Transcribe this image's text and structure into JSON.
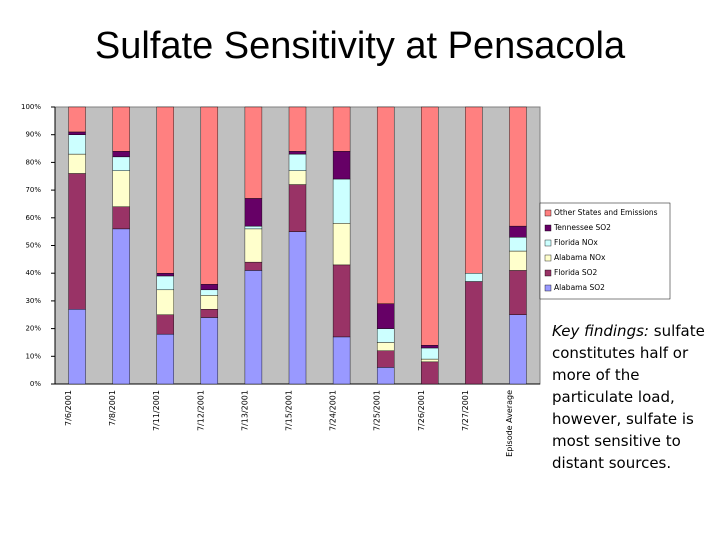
{
  "chart_data": {
    "type": "stacked-bar",
    "title": "Sulfate Sensitivity at Pensacola",
    "categories": [
      "7/6/2001",
      "7/8/2001",
      "7/11/2001",
      "7/12/2001",
      "7/13/2001",
      "7/15/2001",
      "7/24/2001",
      "7/25/2001",
      "7/26/2001",
      "7/27/2001",
      "Episode Average"
    ],
    "series": [
      {
        "name": "Alabama SO2",
        "color": "#9999ff",
        "values": [
          27,
          56,
          18,
          24,
          41,
          55,
          17,
          6,
          0,
          0,
          25
        ]
      },
      {
        "name": "Florida SO2",
        "color": "#993366",
        "values": [
          49,
          8,
          7,
          3,
          3,
          17,
          26,
          6,
          8,
          37,
          16
        ]
      },
      {
        "name": "Alabama NOx",
        "color": "#ffffcc",
        "values": [
          7,
          13,
          9,
          5,
          12,
          5,
          15,
          3,
          1,
          0,
          7
        ]
      },
      {
        "name": "Florida NOx",
        "color": "#ccffff",
        "values": [
          7,
          5,
          5,
          2,
          1,
          6,
          16,
          5,
          4,
          3,
          5
        ]
      },
      {
        "name": "Tennessee SO2",
        "color": "#660066",
        "values": [
          1,
          2,
          1,
          2,
          10,
          1,
          10,
          9,
          1,
          0,
          4
        ]
      },
      {
        "name": "Other States and Emissions",
        "color": "#ff8080",
        "values": [
          9,
          16,
          60,
          64,
          33,
          16,
          16,
          71,
          86,
          60,
          43
        ]
      }
    ],
    "ylim": [
      0,
      100
    ],
    "yticks": [
      {
        "value": 0,
        "label": "0%"
      },
      {
        "value": 10,
        "label": "10%"
      },
      {
        "value": 20,
        "label": "20%"
      },
      {
        "value": 30,
        "label": "30%"
      },
      {
        "value": 40,
        "label": "40%"
      },
      {
        "value": 50,
        "label": "50%"
      },
      {
        "value": 60,
        "label": "60%"
      },
      {
        "value": 70,
        "label": "70%"
      },
      {
        "value": 80,
        "label": "80%"
      },
      {
        "value": 90,
        "label": "90%"
      },
      {
        "value": 100,
        "label": "100%"
      }
    ],
    "plot_background": "#c0c0c0",
    "legend": "right"
  },
  "note": {
    "lead": "Key findings:",
    "text": "sulfate constitutes half or more of the particulate load, however, sulfate is most sensitive to distant sources."
  }
}
